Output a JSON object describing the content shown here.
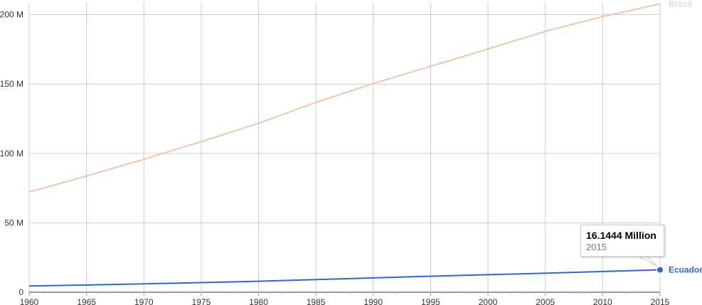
{
  "chart_data": {
    "type": "line",
    "x": [
      1960,
      1965,
      1970,
      1975,
      1980,
      1985,
      1990,
      1995,
      2000,
      2005,
      2010,
      2015
    ],
    "x_ticks": [
      "1960",
      "1965",
      "1970",
      "1975",
      "1980",
      "1985",
      "1990",
      "1995",
      "2000",
      "2005",
      "2010",
      "2015"
    ],
    "y_ticks": [
      "0",
      "50 M",
      "100 M",
      "150 M",
      "200 M"
    ],
    "xlim": [
      1960,
      2015
    ],
    "ylim": [
      0,
      207
    ],
    "grid": true,
    "series": [
      {
        "name": "Brazil",
        "color": "#f4c2b4",
        "values": [
          72.2,
          83.7,
          95.8,
          108.5,
          121.7,
          136.8,
          150.4,
          162.8,
          175.3,
          188.0,
          198.6,
          207.8
        ]
      },
      {
        "name": "Ecuador",
        "color": "#3366cc",
        "values": [
          4.5,
          5.2,
          6.0,
          6.9,
          7.9,
          9.1,
          10.3,
          11.5,
          12.6,
          13.7,
          14.9,
          16.1444
        ]
      }
    ],
    "highlight": {
      "series": "Ecuador",
      "x": 2015
    }
  },
  "tooltip": {
    "value": "16.1444 Million",
    "year": "2015"
  }
}
